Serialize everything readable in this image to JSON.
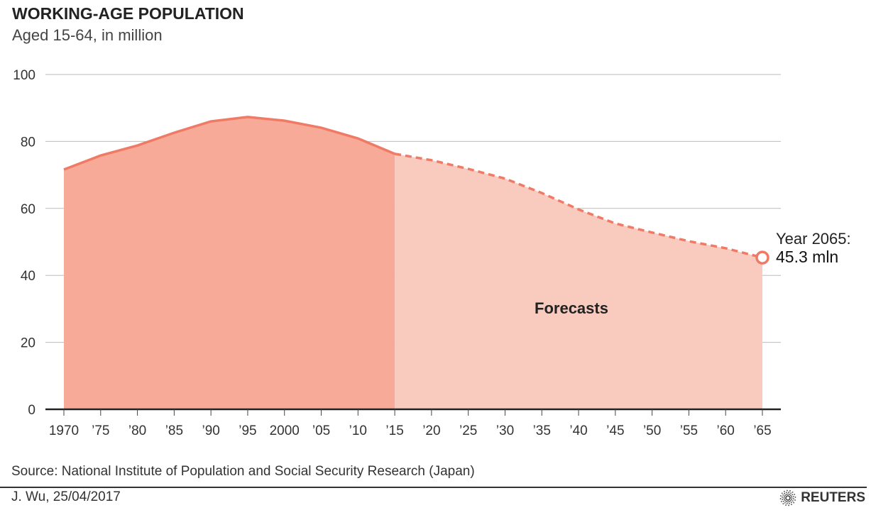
{
  "title": "WORKING-AGE POPULATION",
  "subtitle": "Aged 15-64, in million",
  "source": "Source: National Institute of Population and Social Security Research (Japan)",
  "byline": "J. Wu,  25/04/2017",
  "logo": "REUTERS",
  "chart_data": {
    "type": "area",
    "title": "WORKING-AGE POPULATION",
    "subtitle": "Aged 15-64, in million",
    "x": [
      1970,
      1975,
      1980,
      1985,
      1990,
      1995,
      2000,
      2005,
      2010,
      2015,
      2020,
      2025,
      2030,
      2035,
      2040,
      2045,
      2050,
      2055,
      2060,
      2065
    ],
    "x_tick_labels": [
      "1970",
      "’75",
      "’80",
      "’85",
      "’90",
      "’95",
      "2000",
      "’05",
      "’10",
      "’15",
      "’20",
      "’25",
      "’30",
      "’35",
      "’40",
      "’45",
      "’50",
      "’55",
      "’60",
      "’65"
    ],
    "values": [
      71.6,
      75.8,
      78.8,
      82.6,
      86.0,
      87.3,
      86.2,
      84.1,
      80.9,
      76.3,
      74.4,
      71.8,
      68.9,
      64.6,
      59.7,
      55.5,
      52.8,
      50.2,
      48.1,
      45.3
    ],
    "forecast_from": 2015,
    "forecast_label": "Forecasts",
    "annotation": {
      "line1": "Year 2065:",
      "line2": "45.3 mln"
    },
    "ylim": [
      0,
      100
    ],
    "y_ticks": [
      0,
      20,
      40,
      60,
      80,
      100
    ],
    "grid": true,
    "colors": {
      "actual_fill": "#f7aa98",
      "forecast_fill": "#f9cbbf",
      "line": "#ef7a65"
    }
  }
}
